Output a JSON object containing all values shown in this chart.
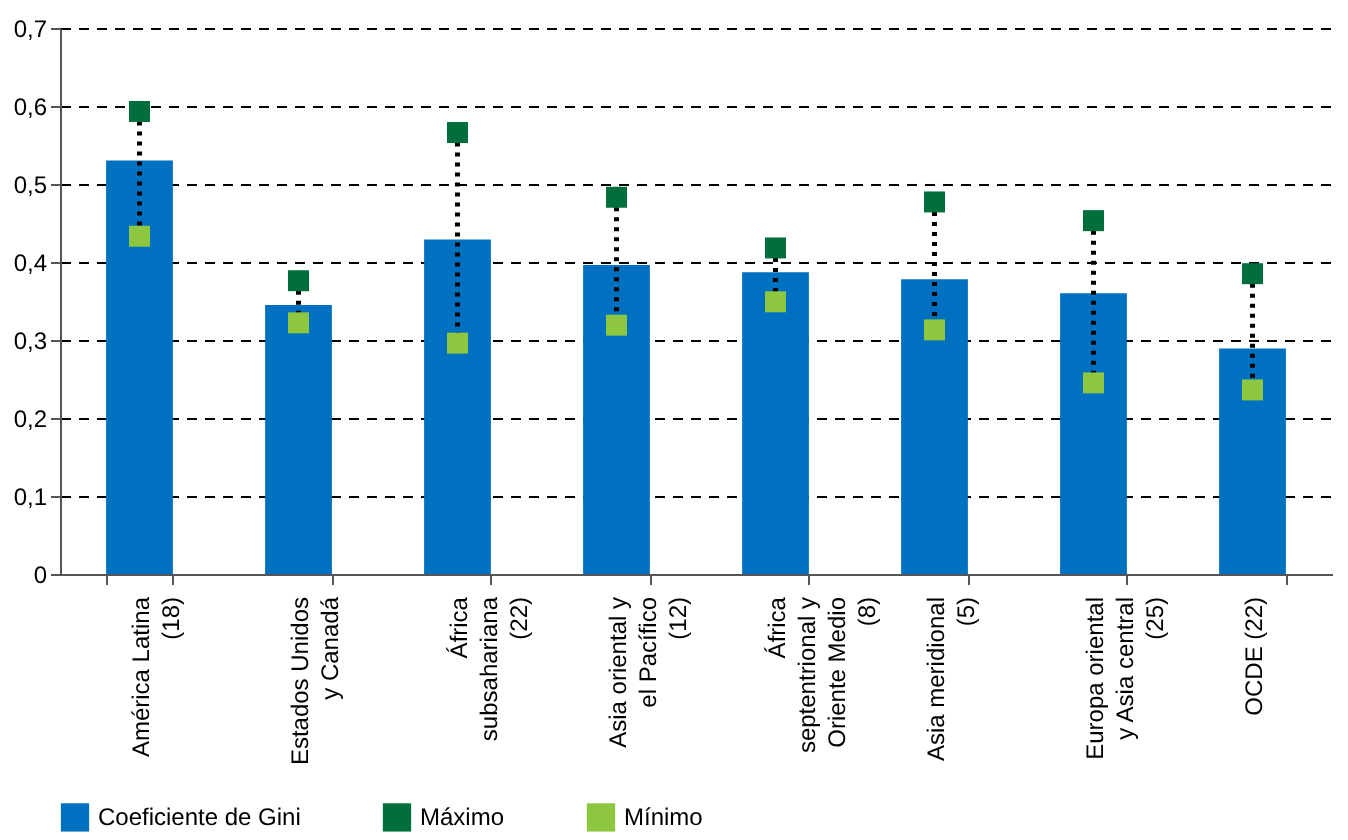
{
  "chart_data": {
    "type": "bar",
    "categories": [
      "América Latina (18)",
      "Estados Unidos y Canadá",
      "África subsahariana (22)",
      "Asia oriental y el Pacífico (12)",
      "África septentrional y Oriente Medio (8)",
      "Asia meridional (5)",
      "Europa oriental y Asia central (25)",
      "OCDE (22)"
    ],
    "series": [
      {
        "name": "Coeficiente de Gini",
        "color": "#0070c0",
        "values": [
          0.53,
          0.345,
          0.429,
          0.396,
          0.387,
          0.378,
          0.36,
          0.289
        ]
      },
      {
        "name": "Máximo",
        "type": "scatter",
        "color": "#006f3c",
        "values": [
          0.593,
          0.376,
          0.566,
          0.483,
          0.418,
          0.477,
          0.453,
          0.385
        ]
      },
      {
        "name": "Mínimo",
        "type": "scatter",
        "color": "#8dc63f",
        "values": [
          0.433,
          0.322,
          0.296,
          0.319,
          0.349,
          0.313,
          0.245,
          0.236
        ]
      }
    ],
    "ylim": [
      0,
      0.7
    ],
    "yticks": [
      {
        "value": 0,
        "label": "0"
      },
      {
        "value": 0.1,
        "label": "0,1"
      },
      {
        "value": 0.2,
        "label": "0,2"
      },
      {
        "value": 0.3,
        "label": "0,3"
      },
      {
        "value": 0.4,
        "label": "0,4"
      },
      {
        "value": 0.5,
        "label": "0,5"
      },
      {
        "value": 0.6,
        "label": "0,6"
      },
      {
        "value": 0.7,
        "label": "0,7"
      }
    ],
    "grid": "y",
    "legend": "bottom",
    "marker": "square"
  }
}
